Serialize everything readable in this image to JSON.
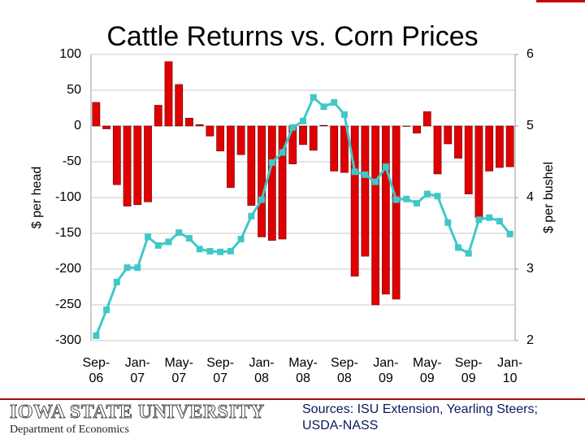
{
  "chart_data": {
    "type": "bar",
    "title": "Cattle Returns vs. Corn Prices",
    "ylabel": "$ per head",
    "y2label": "$ per bushel",
    "categories": [
      "Sep-06",
      null,
      null,
      null,
      "Jan-07",
      null,
      null,
      null,
      "May-07",
      null,
      null,
      null,
      "Sep-07",
      null,
      null,
      null,
      "Jan-08",
      null,
      null,
      null,
      "May-08",
      null,
      null,
      null,
      "Sep-08",
      null,
      null,
      null,
      "Jan-09",
      null,
      null,
      null,
      "May-09",
      null,
      null,
      null,
      "Sep-09",
      null,
      null,
      null,
      "Jan-10"
    ],
    "series": [
      {
        "type": "bar",
        "axis": "y",
        "color": "#e00000",
        "values": [
          33,
          -4,
          -82,
          -112,
          -110,
          -106,
          29,
          90,
          58,
          11,
          2,
          -14,
          -35,
          -86,
          -40,
          -111,
          -155,
          -160,
          -158,
          -53,
          -26,
          -34,
          1,
          -63,
          -65,
          -210,
          -182,
          -250,
          -235,
          -242,
          0,
          -10,
          20,
          -67,
          -25,
          -45,
          -95,
          -128,
          -63,
          -58,
          -57
        ]
      },
      {
        "type": "line",
        "axis": "y2",
        "color": "#40c8c8",
        "values": [
          2.07,
          2.43,
          2.82,
          3.02,
          3.02,
          3.45,
          3.33,
          3.38,
          3.51,
          3.43,
          3.28,
          3.25,
          3.24,
          3.25,
          3.42,
          3.74,
          3.97,
          4.49,
          4.63,
          4.98,
          5.07,
          5.4,
          5.27,
          5.33,
          5.16,
          4.36,
          4.32,
          4.22,
          4.43,
          3.97,
          3.98,
          3.92,
          4.05,
          4.02,
          3.65,
          3.3,
          3.22,
          3.69,
          3.72,
          3.67,
          3.49
        ]
      }
    ],
    "ylim": [
      -300,
      100
    ],
    "yticks": [
      -300,
      -250,
      -200,
      -150,
      -100,
      -50,
      0,
      50,
      100
    ],
    "y2lim": [
      2,
      6
    ],
    "y2ticks": [
      2,
      3,
      4,
      5,
      6
    ],
    "grid": true
  },
  "footer": {
    "logo": "IOWA STATE UNIVERSITY",
    "department": "Department of Economics",
    "sources": "Sources: ISU Extension, Yearling Steers; USDA-NASS"
  }
}
